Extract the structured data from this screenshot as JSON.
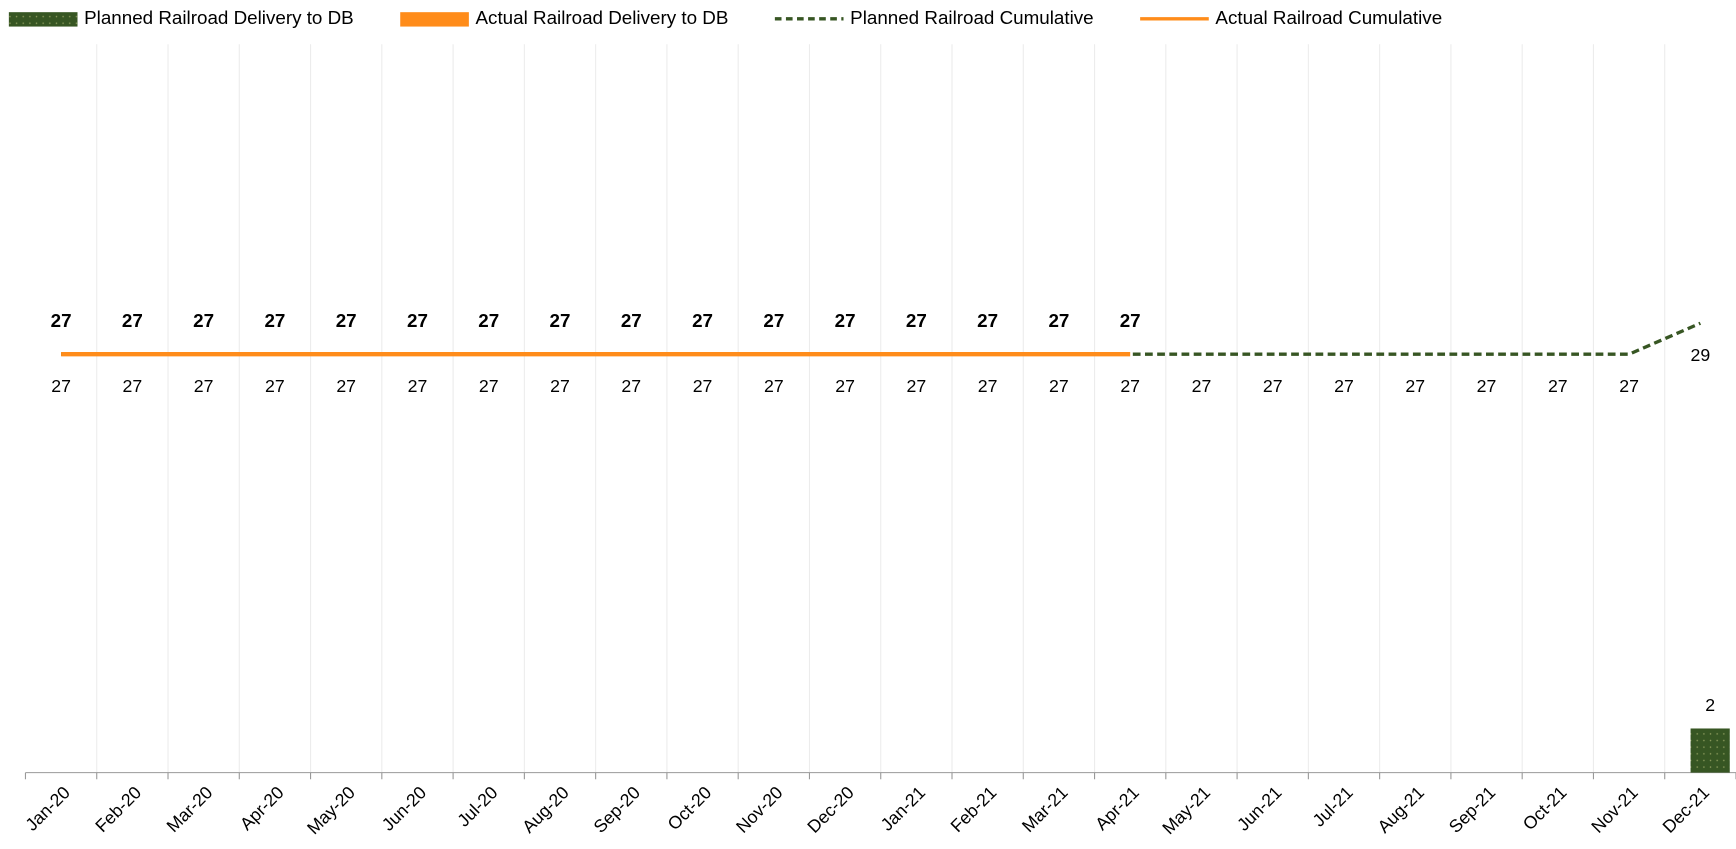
{
  "chart_data": {
    "type": "bar_line",
    "categories": [
      "Jan-20",
      "Feb-20",
      "Mar-20",
      "Apr-20",
      "May-20",
      "Jun-20",
      "Jul-20",
      "Aug-20",
      "Sep-20",
      "Oct-20",
      "Nov-20",
      "Dec-20",
      "Jan-21",
      "Feb-21",
      "Mar-21",
      "Apr-21",
      "May-21",
      "Jun-21",
      "Jul-21",
      "Aug-21",
      "Sep-21",
      "Oct-21",
      "Nov-21",
      "Dec-21"
    ],
    "series": [
      {
        "name": "Planned Railroad Delivery to DB",
        "kind": "bar",
        "color": "#375623",
        "values": [
          null,
          null,
          null,
          null,
          null,
          null,
          null,
          null,
          null,
          null,
          null,
          null,
          null,
          null,
          null,
          null,
          null,
          null,
          null,
          null,
          null,
          null,
          null,
          2
        ]
      },
      {
        "name": "Actual Railroad Delivery to DB",
        "kind": "bar",
        "color": "#ff8c1a",
        "values": [
          null,
          null,
          null,
          null,
          null,
          null,
          null,
          null,
          null,
          null,
          null,
          null,
          null,
          null,
          null,
          null,
          null,
          null,
          null,
          null,
          null,
          null,
          null,
          null
        ]
      },
      {
        "name": "Planned Railroad Cumulative",
        "kind": "line",
        "dashed": true,
        "axis": "y2",
        "color": "#375623",
        "values": [
          27,
          27,
          27,
          27,
          27,
          27,
          27,
          27,
          27,
          27,
          27,
          27,
          27,
          27,
          27,
          27,
          27,
          27,
          27,
          27,
          27,
          27,
          27,
          29
        ]
      },
      {
        "name": "Actual Railroad Cumulative",
        "kind": "line",
        "axis": "y2",
        "color": "#ff8c1a",
        "values": [
          27,
          27,
          27,
          27,
          27,
          27,
          27,
          27,
          27,
          27,
          27,
          27,
          27,
          27,
          27,
          27,
          null,
          null,
          null,
          null,
          null,
          null,
          null,
          null
        ]
      }
    ],
    "ylim": [
      0,
      33
    ],
    "y2lim": [
      0,
      47
    ],
    "grid": true,
    "legend": "top"
  }
}
